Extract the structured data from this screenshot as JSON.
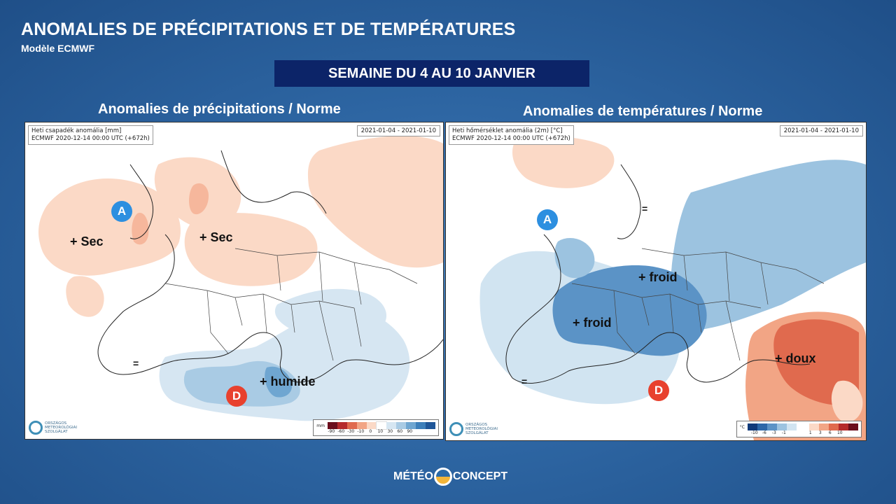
{
  "header": {
    "title": "ANOMALIES DE PRÉCIPITATIONS ET DE TEMPÉRATURES",
    "subtitle": "Modèle ECMWF",
    "week": "SEMAINE DU 4 AU 10 JANVIER"
  },
  "left_panel": {
    "title": "Anomalies de précipitations / Norme",
    "info_line1": "Heti csapadék anomália [mm]",
    "info_line2": "ECMWF 2020-12-14 00:00 UTC (+672h)",
    "date_range": "2021-01-04 - 2021-01-10",
    "labels": [
      "+ Sec",
      "+ Sec",
      "+ humide"
    ],
    "equal": "=",
    "high": "A",
    "low": "D",
    "legend_unit": "mm",
    "legend_ticks": [
      "-90",
      "-60",
      "-30",
      "-10",
      "0",
      "10",
      "30",
      "60",
      "90"
    ],
    "legend_colors": [
      "#6b0d1c",
      "#b52a2c",
      "#e06a4e",
      "#f2a585",
      "#fbd9c6",
      "#ffffff",
      "#d6e6f2",
      "#a9cbe4",
      "#6fa6d1",
      "#3d7fba",
      "#1f5698"
    ]
  },
  "right_panel": {
    "title": "Anomalies de températures / Norme",
    "info_line1": "Heti hőmérséklet anomália (2m) [°C]",
    "info_line2": "ECMWF 2020-12-14 00:00 UTC (+672h)",
    "date_range": "2021-01-04 - 2021-01-10",
    "labels": [
      "+ froid",
      "+ froid",
      "+ doux"
    ],
    "equal": "=",
    "high": "A",
    "low": "D",
    "legend_unit": "°C",
    "legend_ticks_cold": [
      "-10",
      "-6",
      "-3",
      "-1"
    ],
    "legend_ticks_warm": [
      "1",
      "3",
      "6",
      "10"
    ],
    "legend_colors_cold": [
      "#103a7a",
      "#2c67a8",
      "#5b93c6",
      "#9cc3e0",
      "#d1e4f1"
    ],
    "legend_colors_warm": [
      "#fbd9c6",
      "#f2a585",
      "#e06a4e",
      "#b52a2c",
      "#6b0d1c"
    ]
  },
  "map_logo": {
    "line1": "ORSZÁGOS",
    "line2": "METEOROLÓGIAI",
    "line3": "SZOLGÁLAT"
  },
  "footer": {
    "brand_left": "MÉTÉO",
    "brand_right": "CONCEPT"
  }
}
